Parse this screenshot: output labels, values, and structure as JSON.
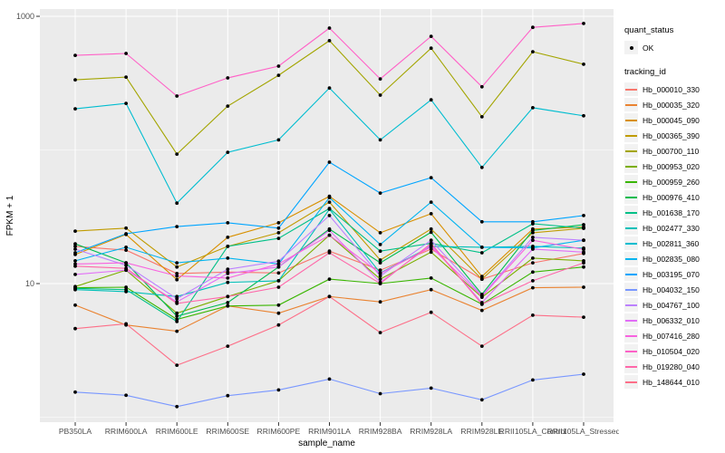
{
  "chart_data": {
    "type": "line",
    "title": "",
    "xlabel": "sample_name",
    "ylabel": "FPKM + 1",
    "y_scale": "log10",
    "ylim": [
      0.92,
      1150
    ],
    "grid": true,
    "panel_bg": "#EBEBEB",
    "grid_color": "#FFFFFF",
    "axis_text_color": "#4D4D4D",
    "axis_title_color": "#000000",
    "point_color": "#000000",
    "y_major_ticks": [
      {
        "value": 10,
        "label": "10"
      },
      {
        "value": 1000,
        "label": "1000"
      }
    ],
    "y_minor_gridlines": [
      1,
      100
    ],
    "categories": [
      "PB350LA",
      "RRIM600LA",
      "RRIM600LE",
      "RRIM600SE",
      "RRIM600PE",
      "RRIM901LA",
      "RRIM928BA",
      "RRIM928LA",
      "RRIM928LE",
      "RRII105LA_Control",
      "RRII105LA_Stressed"
    ],
    "legend": {
      "position": "right",
      "quant_status": {
        "title": "quant_status",
        "items": [
          {
            "label": "OK",
            "symbol": "point"
          }
        ]
      },
      "tracking_id": {
        "title": "tracking_id"
      }
    },
    "series": [
      {
        "name": "Hb_000010_330",
        "color": "#F8766D",
        "values": [
          19.0,
          17.8,
          11.9,
          12.2,
          12.0,
          17.5,
          12.6,
          18.1,
          10.8,
          14.3,
          16.8
        ]
      },
      {
        "name": "Hb_000035_320",
        "color": "#EA8331",
        "values": [
          6.9,
          4.9,
          4.4,
          6.8,
          6.0,
          8.0,
          7.3,
          9.0,
          6.3,
          9.3,
          9.4
        ]
      },
      {
        "name": "Hb_000045_090",
        "color": "#D89000",
        "values": [
          16.5,
          23.3,
          10.7,
          22.2,
          28.5,
          45,
          24,
          33.3,
          11.3,
          25.6,
          26.5
        ]
      },
      {
        "name": "Hb_000365_390",
        "color": "#C09B00",
        "values": [
          24.7,
          26,
          13.3,
          19,
          24,
          40.7,
          15,
          25.6,
          10.8,
          24,
          25.9
        ]
      },
      {
        "name": "Hb_000700_110",
        "color": "#A3A500",
        "values": [
          335,
          351,
          93,
          213,
          362,
          657,
          257,
          577,
          177,
          543,
          438
        ]
      },
      {
        "name": "Hb_000953_020",
        "color": "#7CAE00",
        "values": [
          9.5,
          12.6,
          6.0,
          8.0,
          10.5,
          23,
          10.8,
          17.2,
          7.9,
          15.5,
          14.8
        ]
      },
      {
        "name": "Hb_000959_260",
        "color": "#39B600",
        "values": [
          9.3,
          9.4,
          5.4,
          6.8,
          6.9,
          10.8,
          10.0,
          11.0,
          7.0,
          12.2,
          13.3
        ]
      },
      {
        "name": "Hb_000976_410",
        "color": "#00BB4E",
        "values": [
          19.8,
          14.3,
          5.7,
          7.2,
          13.3,
          25.6,
          14.3,
          24.2,
          8.3,
          25,
          27.6
        ]
      },
      {
        "name": "Hb_001638_170",
        "color": "#00C087",
        "values": [
          9.2,
          9.0,
          5.2,
          19.0,
          21.8,
          36.5,
          17.5,
          20,
          17.0,
          28,
          26
        ]
      },
      {
        "name": "Hb_002477_330",
        "color": "#00C0B8",
        "values": [
          9.0,
          8.7,
          8.0,
          10.2,
          10.5,
          36,
          12,
          19,
          18.7,
          19,
          18.4
        ]
      },
      {
        "name": "Hb_002811_360",
        "color": "#00BDD0",
        "values": [
          203,
          223,
          40,
          96,
          119,
          291,
          119,
          237,
          74,
          207,
          180
        ]
      },
      {
        "name": "Hb_002835_080",
        "color": "#00B4EF",
        "values": [
          14.8,
          18.7,
          14.3,
          15.5,
          14,
          44,
          19.6,
          40.7,
          18.7,
          18.5,
          21.1
        ]
      },
      {
        "name": "Hb_003195_070",
        "color": "#00A5FF",
        "values": [
          17.0,
          23.6,
          26.7,
          28.5,
          26,
          81,
          47.6,
          62,
          29,
          29,
          32.3
        ]
      },
      {
        "name": "Hb_004032_150",
        "color": "#7997FF",
        "values": [
          1.54,
          1.46,
          1.2,
          1.45,
          1.6,
          1.93,
          1.5,
          1.65,
          1.35,
          1.9,
          2.1
        ]
      },
      {
        "name": "Hb_004767_100",
        "color": "#BC81FF",
        "values": [
          18.1,
          13.7,
          7.7,
          12.8,
          14.7,
          32.3,
          11.4,
          21.1,
          8.1,
          22.2,
          21.1
        ]
      },
      {
        "name": "Hb_006332_010",
        "color": "#E26EF7",
        "values": [
          11.7,
          12.6,
          7.3,
          11.9,
          13.3,
          25,
          10.2,
          19.5,
          7.2,
          18.1,
          17.2
        ]
      },
      {
        "name": "Hb_007416_280",
        "color": "#F863DF",
        "values": [
          14.0,
          14.3,
          11.4,
          11.0,
          14.0,
          23,
          11.9,
          18.8,
          8.0,
          21.1,
          18.0
        ]
      },
      {
        "name": "Hb_010504_020",
        "color": "#FF61C7",
        "values": [
          510,
          527,
          253,
          346,
          424,
          816,
          340,
          708,
          297,
          826,
          884
        ]
      },
      {
        "name": "Hb_019280_040",
        "color": "#FF67A9",
        "values": [
          13.5,
          13.0,
          7.1,
          8.0,
          9.4,
          17,
          10.0,
          20,
          7.0,
          10.5,
          14.3
        ]
      },
      {
        "name": "Hb_148644_010",
        "color": "#FD6F88",
        "values": [
          4.6,
          5.0,
          2.45,
          3.4,
          4.9,
          8.0,
          4.3,
          6.1,
          3.4,
          5.8,
          5.6
        ]
      }
    ]
  }
}
